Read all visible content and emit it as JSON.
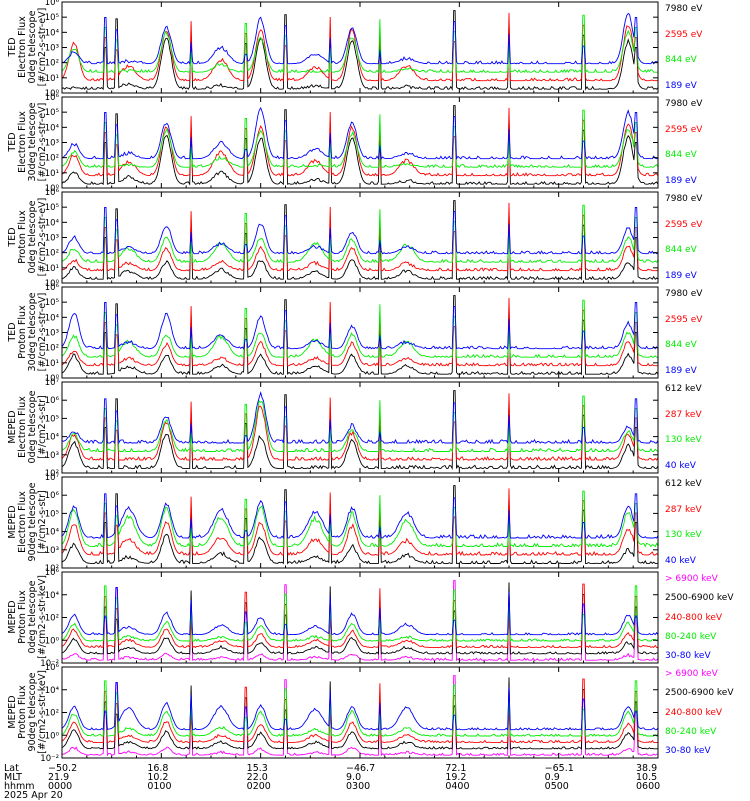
{
  "colors": {
    "black": "#000000",
    "red": "#ff0000",
    "green": "#00ee00",
    "blue": "#0000ff",
    "magenta": "#ff00ff"
  },
  "chart_data": [
    {
      "type": "line",
      "ylabel": [
        "TED",
        "Electron Flux",
        "0deg telescope",
        "[#/cm2-s-str-eV]"
      ],
      "yscale": "log",
      "ylim_exp": [
        0,
        6
      ],
      "ytick_labels": [
        "10⁰",
        "10¹",
        "10²",
        "10³",
        "10⁴",
        "10⁵",
        "10⁶"
      ],
      "series": [
        {
          "name": "7980 eV",
          "color": "black"
        },
        {
          "name": "2595 eV",
          "color": "red"
        },
        {
          "name": "844 eV",
          "color": "green"
        },
        {
          "name": "189 eV",
          "color": "blue"
        }
      ],
      "pass_peaks": [
        [
          0.3,
          3.3,
          3.0,
          2.7
        ],
        [
          0.6,
          1.8,
          1.4,
          2.1
        ],
        [
          3.7,
          4.2,
          4.0,
          4.4
        ],
        [
          0.5,
          2.2,
          1.9,
          3.0
        ],
        [
          3.6,
          4.2,
          3.6,
          4.9
        ],
        [
          0.5,
          1.7,
          1.4,
          2.6
        ],
        [
          3.4,
          4.1,
          3.7,
          4.3
        ],
        [
          0.4,
          1.8,
          1.6,
          2.3
        ],
        [
          3.4,
          4.5,
          4.0,
          5.2
        ]
      ]
    },
    {
      "type": "line",
      "ylabel": [
        "TED",
        "Electron Flux",
        "30deg telescope",
        "[#/cm2-s-str-eV]"
      ],
      "yscale": "log",
      "ylim_exp": [
        0,
        6
      ],
      "ytick_labels": [
        "10⁰",
        "10¹",
        "10²",
        "10³",
        "10⁴",
        "10⁵",
        "10⁶"
      ],
      "series": [
        {
          "name": "7980 eV",
          "color": "black"
        },
        {
          "name": "2595 eV",
          "color": "red"
        },
        {
          "name": "844 eV",
          "color": "green"
        },
        {
          "name": "189 eV",
          "color": "blue"
        }
      ],
      "pass_peaks": [
        [
          1.0,
          2.2,
          2.4,
          2.9
        ],
        [
          0.7,
          1.7,
          1.5,
          2.3
        ],
        [
          3.5,
          4.1,
          3.8,
          4.3
        ],
        [
          1.0,
          2.4,
          2.0,
          3.0
        ],
        [
          3.3,
          4.0,
          3.7,
          5.2
        ],
        [
          0.6,
          1.8,
          1.5,
          2.6
        ],
        [
          3.4,
          4.0,
          3.6,
          4.3
        ],
        [
          0.5,
          1.8,
          1.6,
          2.3
        ],
        [
          3.4,
          4.3,
          3.9,
          5.0
        ]
      ]
    },
    {
      "type": "line",
      "ylabel": [
        "TED",
        "Proton Flux",
        "0deg telescope",
        "[#/cm2-s-str-eV]"
      ],
      "yscale": "log",
      "ylim_exp": [
        0,
        6
      ],
      "ytick_labels": [
        "10⁰",
        "10¹",
        "10²",
        "10³",
        "10⁴",
        "10⁵",
        "10⁶"
      ],
      "series": [
        {
          "name": "7980 eV",
          "color": "black"
        },
        {
          "name": "2595 eV",
          "color": "red"
        },
        {
          "name": "844 eV",
          "color": "green"
        },
        {
          "name": "189 eV",
          "color": "blue"
        }
      ],
      "pass_peaks": [
        [
          1.0,
          1.5,
          2.3,
          3.0
        ],
        [
          0.8,
          1.3,
          2.3,
          2.4
        ],
        [
          1.4,
          2.3,
          3.0,
          3.8
        ],
        [
          0.9,
          1.4,
          2.6,
          2.6
        ],
        [
          1.5,
          2.3,
          3.0,
          3.9
        ],
        [
          0.8,
          1.3,
          2.6,
          2.4
        ],
        [
          1.5,
          2.3,
          2.9,
          3.4
        ],
        [
          0.8,
          1.3,
          2.5,
          2.4
        ],
        [
          1.4,
          2.4,
          3.0,
          3.6
        ]
      ]
    },
    {
      "type": "line",
      "ylabel": [
        "TED",
        "Proton Flux",
        "30deg telescope",
        "[#/cm2-s-str-eV]"
      ],
      "yscale": "log",
      "ylim_exp": [
        0,
        6
      ],
      "ytick_labels": [
        "10⁰",
        "10¹",
        "10²",
        "10³",
        "10⁴",
        "10⁵",
        "10⁶"
      ],
      "series": [
        {
          "name": "7980 eV",
          "color": "black"
        },
        {
          "name": "2595 eV",
          "color": "red"
        },
        {
          "name": "844 eV",
          "color": "green"
        },
        {
          "name": "189 eV",
          "color": "blue"
        }
      ],
      "pass_peaks": [
        [
          1.5,
          1.8,
          2.8,
          4.3
        ],
        [
          0.8,
          1.3,
          2.4,
          2.4
        ],
        [
          1.5,
          2.2,
          2.9,
          4.2
        ],
        [
          0.8,
          1.3,
          2.7,
          2.8
        ],
        [
          1.5,
          2.3,
          3.0,
          4.0
        ],
        [
          0.8,
          1.3,
          2.5,
          2.4
        ],
        [
          1.5,
          2.3,
          2.9,
          3.4
        ],
        [
          0.8,
          1.3,
          2.4,
          2.4
        ],
        [
          1.5,
          2.4,
          3.0,
          3.6
        ]
      ]
    },
    {
      "type": "line",
      "ylabel": [
        "MEPED",
        "Electron Flux",
        "0deg telescope",
        "[#/cm2-s-str]"
      ],
      "yscale": "log",
      "ylim_exp": [
        2,
        7
      ],
      "ytick_labels": [
        "10²",
        "10³",
        "10⁴",
        "10⁵",
        "10⁶",
        "10⁷"
      ],
      "series": [
        {
          "name": "612 keV",
          "color": "black"
        },
        {
          "name": "287 keV",
          "color": "red"
        },
        {
          "name": "130 keV",
          "color": "green"
        },
        {
          "name": "40 keV",
          "color": "blue"
        }
      ],
      "pass_peaks": [
        [
          3.7,
          4.1,
          4.1,
          4.3
        ],
        [
          2.1,
          2.4,
          2.5,
          2.8
        ],
        [
          4.2,
          4.8,
          4.9,
          5.1
        ],
        [
          2.1,
          2.4,
          2.6,
          3.2
        ],
        [
          4.0,
          5.7,
          6.0,
          6.3
        ],
        [
          2.1,
          2.3,
          2.5,
          2.9
        ],
        [
          3.8,
          4.2,
          4.4,
          4.6
        ],
        [
          2.1,
          2.3,
          2.5,
          2.8
        ],
        [
          3.5,
          4.1,
          4.3,
          4.5
        ]
      ]
    },
    {
      "type": "line",
      "ylabel": [
        "MEPED",
        "Electron Flux",
        "90deg telescope",
        "[#/cm2-s-str]"
      ],
      "yscale": "log",
      "ylim_exp": [
        2,
        7
      ],
      "ytick_labels": [
        "10²",
        "10³",
        "10⁴",
        "10⁵",
        "10⁶",
        "10⁷"
      ],
      "series": [
        {
          "name": "612 keV",
          "color": "black"
        },
        {
          "name": "287 keV",
          "color": "red"
        },
        {
          "name": "130 keV",
          "color": "green"
        },
        {
          "name": "40 keV",
          "color": "blue"
        }
      ],
      "pass_peaks": [
        [
          3.3,
          4.4,
          5.2,
          5.4
        ],
        [
          2.6,
          3.6,
          4.8,
          5.3
        ],
        [
          3.8,
          4.5,
          5.3,
          5.5
        ],
        [
          2.8,
          3.7,
          4.8,
          5.2
        ],
        [
          3.7,
          4.5,
          5.4,
          5.6
        ],
        [
          2.6,
          3.6,
          4.7,
          5.1
        ],
        [
          3.2,
          4.3,
          5.0,
          5.3
        ],
        [
          2.7,
          3.5,
          4.6,
          5.0
        ],
        [
          3.0,
          4.2,
          5.1,
          5.4
        ]
      ]
    },
    {
      "type": "line",
      "ylabel": [
        "MEPED",
        "Proton Flux",
        "0deg telescope",
        "[#/cm2-s-str-keV]"
      ],
      "yscale": "log",
      "ylim_exp": [
        -2,
        6
      ],
      "ytick_labels": [
        "10⁻²",
        "10⁰",
        "10²",
        "10⁴",
        "10⁶"
      ],
      "series": [
        {
          "name": "> 6900 keV",
          "color": "magenta"
        },
        {
          "name": "2500-6900 keV",
          "color": "black"
        },
        {
          "name": "240-800 keV",
          "color": "red"
        },
        {
          "name": "80-240 keV",
          "color": "green"
        },
        {
          "name": "30-80 keV",
          "color": "blue"
        }
      ],
      "pass_peaks": [
        [
          -1.2,
          0.1,
          0.9,
          1.4,
          2.2
        ],
        [
          -1.5,
          -0.6,
          0.0,
          0.3,
          1.2
        ],
        [
          -1.2,
          0.2,
          1.0,
          1.6,
          2.4
        ],
        [
          -1.5,
          -0.6,
          0.0,
          0.3,
          1.3
        ],
        [
          -1.3,
          -0.2,
          0.5,
          1.3,
          2.0
        ],
        [
          -1.5,
          -0.6,
          0.0,
          0.3,
          1.2
        ],
        [
          -1.2,
          0.2,
          0.8,
          1.5,
          2.3
        ],
        [
          -1.5,
          -0.6,
          0.0,
          0.3,
          1.4
        ],
        [
          -1.3,
          -0.2,
          0.6,
          1.5,
          2.2
        ]
      ]
    },
    {
      "type": "line",
      "ylabel": [
        "MEPED",
        "Proton Flux",
        "90deg telescope",
        "[#/cm2-s-str-keV]"
      ],
      "yscale": "log",
      "ylim_exp": [
        -2,
        6
      ],
      "ytick_labels": [
        "10⁻²",
        "10⁰",
        "10²",
        "10⁴",
        "10⁶"
      ],
      "series": [
        {
          "name": "> 6900 keV",
          "color": "magenta"
        },
        {
          "name": "2500-6900 keV",
          "color": "black"
        },
        {
          "name": "240-800 keV",
          "color": "red"
        },
        {
          "name": "80-240 keV",
          "color": "green"
        },
        {
          "name": "30-80 keV",
          "color": "blue"
        }
      ],
      "pass_peaks": [
        [
          -1.1,
          0.4,
          1.1,
          1.9,
          2.5
        ],
        [
          -1.5,
          -0.6,
          0.0,
          0.6,
          2.4
        ],
        [
          -1.1,
          0.3,
          1.2,
          2.1,
          2.8
        ],
        [
          -1.5,
          -0.6,
          0.0,
          0.7,
          2.5
        ],
        [
          -1.2,
          0.2,
          1.0,
          2.0,
          2.6
        ],
        [
          -1.5,
          -0.6,
          0.0,
          0.5,
          2.3
        ],
        [
          -1.1,
          0.3,
          1.1,
          2.1,
          2.5
        ],
        [
          -1.5,
          -0.6,
          0.0,
          0.6,
          2.4
        ],
        [
          -1.2,
          0.2,
          1.0,
          2.0,
          2.6
        ]
      ]
    }
  ],
  "pass_hours": [
    0.12,
    0.67,
    1.05,
    1.6,
    2.0,
    2.55,
    2.92,
    3.47,
    5.7
  ],
  "spike_hours": [
    0.44,
    0.55,
    1.3,
    1.85,
    2.25,
    2.7,
    3.2,
    3.95,
    4.5,
    5.25,
    5.78
  ],
  "x_axis": {
    "range_hours": [
      0,
      6
    ],
    "row_labels": [
      "Lat",
      "MLT",
      "hhmm",
      "2025 Apr 20"
    ],
    "ticks": [
      {
        "lat": "−50.2",
        "mlt": "21.9",
        "hhmm": "0000"
      },
      {
        "lat": "16.8",
        "mlt": "10.2",
        "hhmm": "0100"
      },
      {
        "lat": "15.3",
        "mlt": "22.0",
        "hhmm": "0200"
      },
      {
        "lat": "−46.7",
        "mlt": "9.0",
        "hhmm": "0300"
      },
      {
        "lat": "72.1",
        "mlt": "19.2",
        "hhmm": "0400"
      },
      {
        "lat": "−65.1",
        "mlt": "0.9",
        "hhmm": "0500"
      },
      {
        "lat": "38.9",
        "mlt": "10.5",
        "hhmm": "0600"
      }
    ]
  }
}
